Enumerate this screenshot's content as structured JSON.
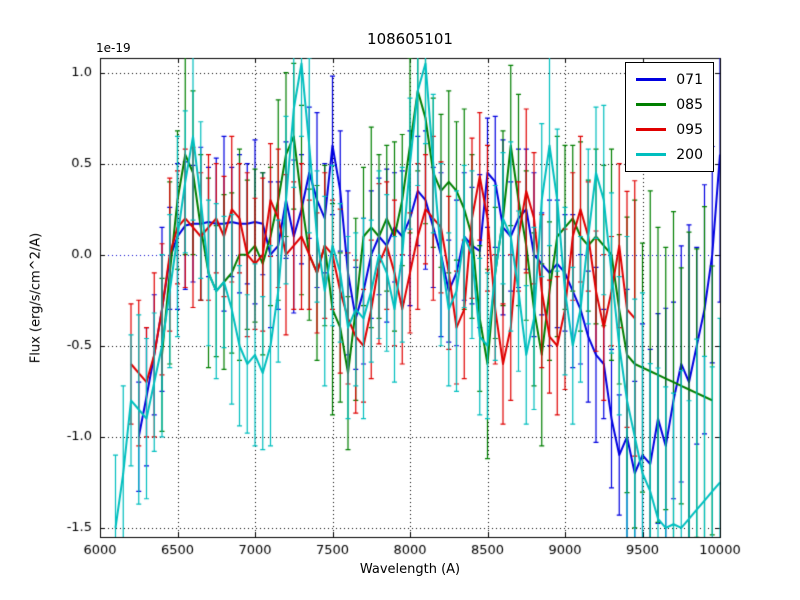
{
  "chart_data": {
    "type": "line",
    "title": "108605101",
    "xlabel": "Wavelength (A)",
    "ylabel": "Flux (erg/s/cm^2/A)",
    "y_offset_text": "1e-19",
    "xlim": [
      6000,
      10000
    ],
    "ylim": [
      -1.55,
      1.08
    ],
    "x_ticks": [
      6000,
      6500,
      7000,
      7500,
      8000,
      8500,
      9000,
      9500,
      10000
    ],
    "x_tick_labels": [
      "6000",
      "6500",
      "7000",
      "7500",
      "8000",
      "8500",
      "9000",
      "9500",
      "10000"
    ],
    "y_ticks": [
      -1.5,
      -1.0,
      -0.5,
      0.0,
      0.5,
      1.0
    ],
    "y_tick_labels": [
      "-1.5",
      "-1.0",
      "-0.5",
      "0.0",
      "0.5",
      "1.0"
    ],
    "grid": {
      "on": true,
      "style": "dotted",
      "color": "#000000",
      "zero_line_color": "#0000cc"
    },
    "legend": {
      "position": "upper right"
    },
    "err_edge": {
      "x_from": 9400,
      "factor": 1.8
    },
    "series": [
      {
        "name": "071",
        "color": "#0000e0",
        "x_start": 6250,
        "x_step": 50,
        "values": [
          -1.0,
          -0.78,
          -0.55,
          -0.3,
          -0.02,
          0.1,
          0.16,
          0.17,
          0.17,
          0.18,
          0.17,
          0.17,
          0.18,
          0.17,
          0.17,
          0.18,
          0.17,
          0.0,
          0.05,
          0.3,
          0.1,
          0.25,
          0.45,
          0.3,
          0.2,
          0.6,
          0.35,
          -0.1,
          -0.35,
          -0.2,
          0.0,
          0.1,
          0.05,
          0.15,
          0.1,
          0.2,
          0.35,
          0.3,
          0.15,
          0.0,
          -0.2,
          -0.1,
          0.1,
          0.05,
          0.02,
          0.45,
          0.4,
          0.15,
          0.1,
          0.2,
          0.25,
          0.0,
          -0.05,
          -0.1,
          -0.05,
          -0.1,
          -0.2,
          -0.3,
          -0.45,
          -0.55,
          -0.6,
          -0.9,
          -1.1,
          -1.0,
          -1.2,
          -1.1,
          -1.15,
          -0.9,
          -1.05,
          -0.8,
          -0.6,
          -0.7,
          -0.5,
          -0.3,
          0.0,
          0.55
        ],
        "err_pattern": [
          0.3,
          0.38,
          0.33,
          0.45,
          0.28,
          0.4,
          0.35,
          0.32,
          0.42,
          0.3,
          0.36,
          0.48
        ]
      },
      {
        "name": "085",
        "color": "#007f00",
        "x_start": 6400,
        "x_step": 50,
        "values": [
          -0.55,
          -0.1,
          0.3,
          0.55,
          0.45,
          0.15,
          -0.1,
          -0.2,
          -0.15,
          -0.1,
          0.0,
          0.0,
          0.05,
          -0.05,
          0.1,
          0.3,
          0.55,
          0.65,
          0.3,
          0.0,
          -0.1,
          0.05,
          -0.3,
          -0.4,
          -0.65,
          -0.3,
          0.1,
          0.15,
          0.1,
          0.2,
          0.1,
          0.3,
          0.6,
          0.9,
          0.75,
          0.45,
          0.35,
          0.4,
          0.35,
          0.25,
          0.1,
          -0.35,
          -0.6,
          -0.1,
          0.2,
          0.6,
          0.3,
          0.05,
          -0.3,
          -0.55,
          -0.2,
          0.1,
          0.15,
          0.2,
          0.1,
          0.05,
          0.1,
          0.05,
          0.0,
          -0.3,
          -0.55,
          -0.6,
          -0.62,
          -0.64,
          -0.66,
          -0.68,
          -0.7,
          -0.72,
          -0.74,
          -0.76,
          -0.78,
          -0.8
        ],
        "err_pattern": [
          0.42,
          0.5,
          0.38,
          0.55,
          0.45,
          0.4,
          0.52,
          0.36,
          0.48,
          0.44,
          0.58,
          0.41
        ]
      },
      {
        "name": "095",
        "color": "#e00000",
        "x_start": 6200,
        "x_step": 50,
        "values": [
          -0.6,
          -0.65,
          -0.7,
          -0.55,
          -0.3,
          0.0,
          0.15,
          0.2,
          0.15,
          0.1,
          0.15,
          0.2,
          0.1,
          0.25,
          0.2,
          0.0,
          -0.05,
          0.0,
          0.3,
          0.2,
          0.0,
          0.05,
          0.1,
          0.0,
          -0.1,
          0.05,
          0.0,
          -0.2,
          -0.35,
          -0.45,
          -0.5,
          -0.3,
          -0.05,
          0.05,
          -0.1,
          -0.3,
          -0.1,
          0.1,
          0.25,
          0.2,
          0.15,
          -0.1,
          -0.4,
          -0.3,
          0.2,
          0.43,
          0.2,
          -0.3,
          -0.6,
          -0.4,
          0.1,
          0.35,
          0.2,
          -0.2,
          -0.45,
          -0.5,
          -0.3,
          0.1,
          0.25,
          0.1,
          -0.2,
          -0.4,
          -0.2,
          0.05,
          -0.3,
          -0.35
        ],
        "err_pattern": [
          0.33,
          0.4,
          0.3,
          0.45,
          0.36,
          0.42,
          0.31,
          0.38,
          0.44,
          0.35,
          0.4,
          0.3
        ]
      },
      {
        "name": "200",
        "color": "#00bfbf",
        "x_start": 6100,
        "x_step": 50,
        "values": [
          -1.5,
          -1.2,
          -0.8,
          -0.85,
          -0.9,
          -0.7,
          -0.5,
          -0.2,
          0.1,
          0.4,
          0.65,
          0.3,
          -0.1,
          -0.2,
          -0.15,
          -0.3,
          -0.5,
          -0.6,
          -0.55,
          -0.65,
          -0.5,
          -0.2,
          0.3,
          0.8,
          1.05,
          0.6,
          0.1,
          -0.2,
          0.05,
          -0.1,
          -0.4,
          -0.3,
          -0.35,
          -0.2,
          0.0,
          -0.1,
          -0.3,
          0.0,
          0.5,
          0.9,
          1.05,
          0.5,
          0.0,
          -0.3,
          -0.2,
          0.1,
          0.0,
          -0.45,
          -0.5,
          -0.1,
          0.2,
          0.1,
          -0.2,
          -0.55,
          -0.35,
          0.3,
          0.6,
          0.3,
          -0.2,
          -0.5,
          -0.3,
          0.1,
          0.45,
          0.3,
          -0.1,
          -0.5,
          -0.8,
          -1.0,
          -1.2,
          -1.3,
          -1.45,
          -1.5,
          -1.48,
          -1.5,
          -1.45,
          -1.4,
          -1.35,
          -1.3,
          -1.25
        ],
        "err_pattern": [
          0.4,
          0.48,
          0.36,
          0.52,
          0.44,
          0.38,
          0.5,
          0.42,
          0.55,
          0.39,
          0.46,
          0.43
        ]
      }
    ]
  }
}
